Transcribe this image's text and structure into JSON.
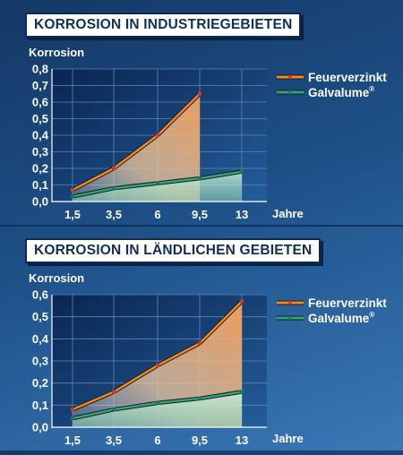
{
  "charts": [
    {
      "title": "KORROSION IN INDUSTRIEGEBIETEN"
    },
    {
      "title": "KORROSION IN LÄNDLICHEN GEBIETEN"
    }
  ],
  "chart_data": [
    {
      "type": "area",
      "title": "KORROSION IN INDUSTRIEGEBIETEN",
      "ylabel": "Korrosion",
      "xlabel": "Jahre",
      "categories": [
        "1,5",
        "3,5",
        "6",
        "9,5"
      ],
      "y_ticks": [
        "0,0",
        "0,1",
        "0,2",
        "0,3",
        "0,4",
        "0,5",
        "0,6",
        "0,7",
        "0,8"
      ],
      "ylim": [
        0,
        0.8
      ],
      "x_ticks": [
        "1,5",
        "3,5",
        "6",
        "9,5",
        "13"
      ],
      "grid": true,
      "legend": "right",
      "series": [
        {
          "name": "Feuerverzinkt",
          "x": [
            1.5,
            3.5,
            6,
            9.5
          ],
          "values": [
            0.07,
            0.2,
            0.4,
            0.65
          ],
          "color": "#f08a24"
        },
        {
          "name": "Galvalume®",
          "x": [
            1.5,
            3.5,
            6,
            9.5,
            13
          ],
          "values": [
            0.03,
            0.08,
            0.11,
            0.14,
            0.18
          ],
          "color": "#2fa57a"
        }
      ]
    },
    {
      "type": "area",
      "title": "KORROSION IN LÄNDLICHEN GEBIETEN",
      "ylabel": "Korrosion",
      "xlabel": "Jahre",
      "categories": [
        "1,5",
        "3,5",
        "6",
        "9,5",
        "13"
      ],
      "y_ticks": [
        "0,0",
        "0,1",
        "0,2",
        "0,3",
        "0,4",
        "0,5",
        "0,6"
      ],
      "ylim": [
        0,
        0.6
      ],
      "x_ticks": [
        "1,5",
        "3,5",
        "6",
        "9,5",
        "13"
      ],
      "grid": true,
      "legend": "right",
      "series": [
        {
          "name": "Feuerverzinkt",
          "x": [
            1.5,
            3.5,
            6,
            9.5,
            13
          ],
          "values": [
            0.08,
            0.16,
            0.28,
            0.38,
            0.57
          ],
          "color": "#f08a24"
        },
        {
          "name": "Galvalume®",
          "x": [
            1.5,
            3.5,
            6,
            9.5,
            13
          ],
          "values": [
            0.04,
            0.08,
            0.11,
            0.13,
            0.16
          ],
          "color": "#2fa57a"
        }
      ]
    }
  ]
}
